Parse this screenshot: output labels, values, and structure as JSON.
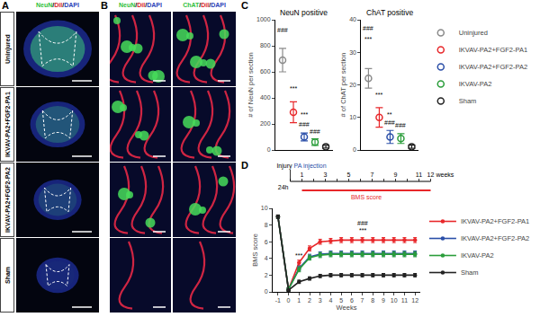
{
  "panel_labels": [
    "A",
    "B",
    "C",
    "D"
  ],
  "images": {
    "stain_a": [
      {
        "text": "NeuN",
        "color": "#2fbf3a"
      },
      {
        "text": "/",
        "color": "#000000"
      },
      {
        "text": "DiI",
        "color": "#d8262b"
      },
      {
        "text": "/",
        "color": "#000000"
      },
      {
        "text": "DAPI",
        "color": "#2b3fb8"
      }
    ],
    "stain_b1": [
      {
        "text": "NeuN",
        "color": "#2fbf3a"
      },
      {
        "text": "/",
        "color": "#000000"
      },
      {
        "text": "DiI",
        "color": "#d8262b"
      },
      {
        "text": "/",
        "color": "#000000"
      },
      {
        "text": "DAPI",
        "color": "#2b3fb8"
      }
    ],
    "stain_b2": [
      {
        "text": "ChAT",
        "color": "#2fbf3a"
      },
      {
        "text": "/",
        "color": "#000000"
      },
      {
        "text": "DiI",
        "color": "#d8262b"
      },
      {
        "text": "/",
        "color": "#000000"
      },
      {
        "text": "DAPI",
        "color": "#2b3fb8"
      }
    ],
    "rows": [
      "Uninjured",
      "IKVAV-PA2+FGF2-PA1",
      "IKVAV-PA2+FGF2-PA2",
      "Sham"
    ]
  },
  "timeline": {
    "range": [
      0,
      12
    ],
    "ticks": [
      1,
      3,
      5,
      7,
      9,
      11,
      12
    ],
    "unit": "weeks",
    "start": "Injury",
    "start_sub": "24h",
    "event": "PA injection",
    "bar": "BMS score"
  },
  "chart_data": [
    {
      "type": "scatter",
      "title": "NeuN positive",
      "ylabel": "# of NeuN per section",
      "categories": [
        null,
        null,
        null,
        null,
        null
      ],
      "series": [
        {
          "name": "Uninjured",
          "color": "#8a8a8a",
          "values": [
            690,
            null,
            null,
            null,
            null
          ],
          "error": [
            90,
            null,
            null,
            null,
            null
          ]
        },
        {
          "name": "IKVAV-PA2+FGF2-PA1",
          "color": "#e8272a",
          "values": [
            null,
            290,
            null,
            null,
            null
          ],
          "error": [
            null,
            80,
            null,
            null,
            null
          ]
        },
        {
          "name": "IKVAV-PA2+FGF2-PA2",
          "color": "#2b4fa8",
          "values": [
            null,
            null,
            100,
            null,
            null
          ],
          "error": [
            null,
            null,
            30,
            null,
            null
          ]
        },
        {
          "name": "IKVAV-PA2",
          "color": "#2a9d3a",
          "values": [
            null,
            null,
            null,
            60,
            null
          ],
          "error": [
            null,
            null,
            null,
            25,
            null
          ]
        },
        {
          "name": "Sham",
          "color": "#222222",
          "values": [
            null,
            null,
            null,
            null,
            25
          ],
          "error": [
            null,
            null,
            null,
            null,
            10
          ]
        }
      ],
      "ylim": [
        0,
        1000
      ],
      "yticks": [
        0,
        200,
        400,
        600,
        800,
        1000
      ],
      "tick_labels": "y",
      "grid": false,
      "legend": "right",
      "marker": "circle-open",
      "annotations": [
        {
          "text": "###",
          "x": 0,
          "y": 920
        },
        {
          "text": "***",
          "x": 1,
          "y": 470
        },
        {
          "text": "***",
          "x": 2,
          "y": 270
        },
        {
          "text": "###",
          "x": 2,
          "y": 200
        },
        {
          "text": "###",
          "x": 3,
          "y": 140
        }
      ]
    },
    {
      "type": "scatter",
      "title": "ChAT positive",
      "ylabel": "# of ChAT per section",
      "categories": [
        null,
        null,
        null,
        null,
        null
      ],
      "series": [
        {
          "name": "Uninjured",
          "color": "#8a8a8a",
          "values": [
            22,
            null,
            null,
            null,
            null
          ],
          "error": [
            3,
            null,
            null,
            null,
            null
          ]
        },
        {
          "name": "IKVAV-PA2+FGF2-PA1",
          "color": "#e8272a",
          "values": [
            null,
            10,
            null,
            null,
            null
          ],
          "error": [
            null,
            3,
            null,
            null,
            null
          ]
        },
        {
          "name": "IKVAV-PA2+FGF2-PA2",
          "color": "#2b4fa8",
          "values": [
            null,
            null,
            4,
            null,
            null
          ],
          "error": [
            null,
            null,
            2,
            null,
            null
          ]
        },
        {
          "name": "IKVAV-PA2",
          "color": "#2a9d3a",
          "values": [
            null,
            null,
            null,
            3.5,
            null
          ],
          "error": [
            null,
            null,
            null,
            1.5,
            null
          ]
        },
        {
          "name": "Sham",
          "color": "#222222",
          "values": [
            null,
            null,
            null,
            null,
            1
          ],
          "error": [
            null,
            null,
            null,
            null,
            0.5
          ]
        }
      ],
      "ylim": [
        0,
        40
      ],
      "yticks": [
        0,
        10,
        20,
        30,
        40
      ],
      "tick_labels": "y",
      "grid": false,
      "marker": "circle-open",
      "annotations": [
        {
          "text": "###",
          "x": 0,
          "y": 37.5
        },
        {
          "text": "***",
          "x": 0,
          "y": 34
        },
        {
          "text": "***",
          "x": 1,
          "y": 17
        },
        {
          "text": "**",
          "x": 2,
          "y": 11
        },
        {
          "text": "###",
          "x": 2,
          "y": 8.3
        },
        {
          "text": "###",
          "x": 3,
          "y": 7.5
        }
      ]
    },
    {
      "type": "line",
      "xlabel": "Weeks",
      "ylabel": "BMS score",
      "x": [
        -1,
        0,
        1,
        2,
        3,
        4,
        5,
        6,
        7,
        8,
        9,
        10,
        11,
        12
      ],
      "series": [
        {
          "name": "IKVAV-PA2+FGF2-PA1",
          "color": "#e8272a",
          "values": [
            9,
            0.3,
            3.5,
            5.2,
            6.0,
            6.1,
            6.2,
            6.2,
            6.2,
            6.2,
            6.2,
            6.2,
            6.2,
            6.2
          ],
          "error": [
            0.2,
            0.2,
            0.3,
            0.3,
            0.3,
            0.3,
            0.3,
            0.3,
            0.3,
            0.3,
            0.3,
            0.3,
            0.3,
            0.3
          ]
        },
        {
          "name": "IKVAV-PA2+FGF2-PA2",
          "color": "#2b4fa8",
          "values": [
            9,
            0.3,
            2.8,
            4.2,
            4.5,
            4.6,
            4.6,
            4.6,
            4.6,
            4.6,
            4.6,
            4.6,
            4.6,
            4.6
          ],
          "error": [
            0.2,
            0.2,
            0.3,
            0.3,
            0.3,
            0.3,
            0.3,
            0.3,
            0.3,
            0.3,
            0.3,
            0.3,
            0.3,
            0.3
          ]
        },
        {
          "name": "IKVAV-PA2",
          "color": "#2a9d3a",
          "values": [
            9,
            0.3,
            2.7,
            4.1,
            4.4,
            4.5,
            4.5,
            4.5,
            4.5,
            4.5,
            4.5,
            4.5,
            4.5,
            4.5
          ],
          "error": [
            0.2,
            0.2,
            0.3,
            0.3,
            0.3,
            0.3,
            0.3,
            0.3,
            0.3,
            0.3,
            0.3,
            0.3,
            0.3,
            0.3
          ]
        },
        {
          "name": "Sham",
          "color": "#222222",
          "values": [
            9,
            0.2,
            1.2,
            1.6,
            1.9,
            2.0,
            2.0,
            2.0,
            2.0,
            2.0,
            2.0,
            2.0,
            2.0,
            2.0
          ],
          "error": [
            0.2,
            0.1,
            0.2,
            0.2,
            0.2,
            0.2,
            0.2,
            0.2,
            0.2,
            0.2,
            0.2,
            0.2,
            0.2,
            0.2
          ]
        }
      ],
      "xlim": [
        -1.5,
        12.5
      ],
      "xticks": [
        -1,
        0,
        1,
        2,
        3,
        4,
        5,
        6,
        7,
        8,
        9,
        10,
        11,
        12
      ],
      "ylim": [
        0,
        10
      ],
      "yticks": [
        0,
        2,
        4,
        6,
        8,
        10
      ],
      "grid": false,
      "legend": "right",
      "marker": "circle",
      "line_style": "solid",
      "annotations": [
        {
          "text": "***",
          "x": 1,
          "y": 4.4
        },
        {
          "text": "###",
          "x": 7,
          "y": 8.2
        },
        {
          "text": "***",
          "x": 7,
          "y": 7.4
        }
      ]
    }
  ]
}
